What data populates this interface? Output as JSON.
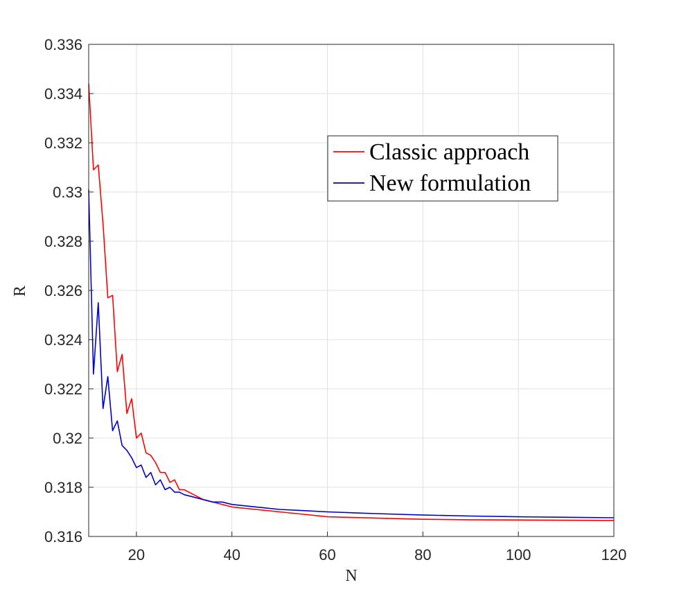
{
  "chart_data": {
    "type": "line",
    "xlabel": "N",
    "ylabel": "R",
    "xlim": [
      10,
      120
    ],
    "ylim": [
      0.316,
      0.336
    ],
    "xticks": [
      20,
      40,
      60,
      80,
      100,
      120
    ],
    "xtick_labels": [
      "20",
      "40",
      "60",
      "80",
      "100",
      "120"
    ],
    "yticks": [
      0.316,
      0.318,
      0.32,
      0.322,
      0.324,
      0.326,
      0.328,
      0.33,
      0.332,
      0.334,
      0.336
    ],
    "ytick_labels": [
      "0.316",
      "0.318",
      "0.32",
      "0.322",
      "0.324",
      "0.326",
      "0.328",
      "0.33",
      "0.332",
      "0.334",
      "0.336"
    ],
    "grid": true,
    "legend_position": "top-right",
    "colors": {
      "axis": "#262626",
      "grid": "#e0e0e0"
    },
    "series": [
      {
        "name": "Classic approach",
        "color": "#ff0000",
        "x": [
          10,
          11,
          12,
          13,
          14,
          15,
          16,
          17,
          18,
          19,
          20,
          21,
          22,
          23,
          24,
          25,
          26,
          27,
          28,
          29,
          30,
          32,
          34,
          36,
          38,
          40,
          45,
          50,
          55,
          60,
          70,
          80,
          90,
          100,
          110,
          120
        ],
        "y": [
          0.3344,
          0.3309,
          0.3311,
          0.3287,
          0.3257,
          0.3258,
          0.3227,
          0.3234,
          0.321,
          0.3216,
          0.32,
          0.3202,
          0.3194,
          0.3193,
          0.319,
          0.3186,
          0.3186,
          0.3182,
          0.3183,
          0.3179,
          0.3179,
          0.3177,
          0.3175,
          0.3174,
          0.3173,
          0.3172,
          0.3171,
          0.317,
          0.3169,
          0.3168,
          0.31675,
          0.3167,
          0.31668,
          0.31667,
          0.31666,
          0.31665
        ]
      },
      {
        "name": "New formulation",
        "color": "#0000cc",
        "x": [
          10,
          11,
          12,
          13,
          14,
          15,
          16,
          17,
          18,
          19,
          20,
          21,
          22,
          23,
          24,
          25,
          26,
          27,
          28,
          29,
          30,
          32,
          34,
          36,
          38,
          40,
          45,
          50,
          55,
          60,
          70,
          80,
          90,
          100,
          110,
          120
        ],
        "y": [
          0.3301,
          0.3226,
          0.3255,
          0.3212,
          0.3225,
          0.3203,
          0.3207,
          0.3197,
          0.3195,
          0.3192,
          0.3188,
          0.3189,
          0.3184,
          0.3186,
          0.3181,
          0.3183,
          0.3179,
          0.318,
          0.3178,
          0.3178,
          0.3177,
          0.3176,
          0.3175,
          0.3174,
          0.3174,
          0.3173,
          0.3172,
          0.3171,
          0.31705,
          0.317,
          0.31693,
          0.31687,
          0.31683,
          0.3168,
          0.31678,
          0.31676
        ]
      }
    ]
  }
}
